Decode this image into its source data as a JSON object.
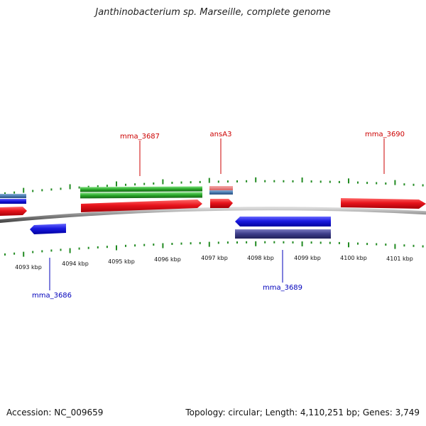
{
  "title": "Janthinobacterium sp. Marseille, complete genome",
  "footer": {
    "accession": "Accession: NC_009659",
    "stats": "Topology: circular; Length: 4,110,251 bp; Genes: 3,749"
  },
  "colors": {
    "forward_gene": "#e8141c",
    "reverse_gene": "#1a1ae0",
    "rna": "#2aa82a",
    "trna": "#e87878",
    "steelblue": "#4a7ab0",
    "reverse_cds": "#3c3c88",
    "tick": "#228b22",
    "forward_label": "#cc0000",
    "reverse_label": "#0000bb",
    "backbone": "#8a8a8a"
  },
  "scale": {
    "unit": "kbp",
    "labels": [
      "4093 kbp",
      "4094 kbp",
      "4095 kbp",
      "4096 kbp",
      "4097 kbp",
      "4098 kbp",
      "4099 kbp",
      "4100 kbp",
      "4101 kbp"
    ]
  },
  "genes": [
    {
      "name": "mma_3687",
      "strand": "forward"
    },
    {
      "name": "ansA3",
      "strand": "forward"
    },
    {
      "name": "mma_3690",
      "strand": "forward"
    },
    {
      "name": "mma_3686",
      "strand": "reverse"
    },
    {
      "name": "mma_3689",
      "strand": "reverse"
    }
  ]
}
